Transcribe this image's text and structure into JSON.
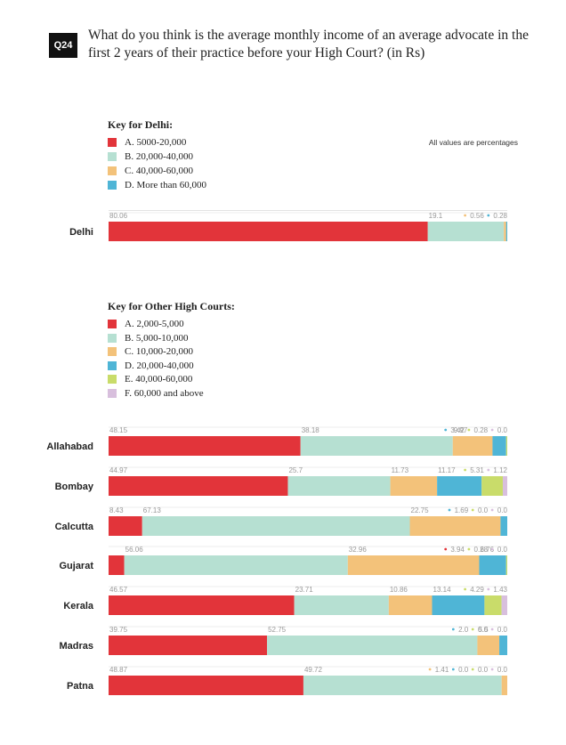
{
  "question": {
    "badge": "Q24",
    "text": "What do you think is the average monthly income of an average advocate in the first 2 years of their practice before your High Court? (in Rs)"
  },
  "note": "All values are percentages",
  "colors": {
    "red": "#e2343a",
    "mint": "#b6e0d2",
    "orange": "#f3c27a",
    "blue": "#4fb5d6",
    "green": "#c9dc6a",
    "lilac": "#d8bfdd"
  },
  "delhi_key": {
    "title": "Key for Delhi:",
    "items": [
      {
        "label": "A.  5000-20,000",
        "color": "#e2343a"
      },
      {
        "label": "B.  20,000-40,000",
        "color": "#b6e0d2"
      },
      {
        "label": "C.  40,000-60,000",
        "color": "#f3c27a"
      },
      {
        "label": "D.  More than 60,000",
        "color": "#4fb5d6"
      }
    ]
  },
  "other_key": {
    "title": "Key for Other High Courts:",
    "items": [
      {
        "label": "A.  2,000-5,000",
        "color": "#e2343a"
      },
      {
        "label": "B.  5,000-10,000",
        "color": "#b6e0d2"
      },
      {
        "label": "C.  10,000-20,000",
        "color": "#f3c27a"
      },
      {
        "label": "D.  20,000-40,000",
        "color": "#4fb5d6"
      },
      {
        "label": "E.  40,000-60,000",
        "color": "#c9dc6a"
      },
      {
        "label": "F.  60,000 and above",
        "color": "#d8bfdd"
      }
    ]
  },
  "chart_data": {
    "type": "bar",
    "orientation": "horizontal-stacked",
    "unit": "percent",
    "xlim": [
      0,
      100
    ],
    "categories": [
      "Delhi",
      "Allahabad",
      "Bombay",
      "Calcutta",
      "Gujarat",
      "Kerala",
      "Madras",
      "Patna"
    ],
    "series": [
      {
        "name": "A",
        "values": [
          80.06,
          48.15,
          44.97,
          8.43,
          3.94,
          46.57,
          39.75,
          48.87
        ],
        "labels": [
          "80.06",
          "48.15",
          "44.97",
          "8.43",
          "3.94",
          "46.57",
          "39.75",
          "48.87"
        ]
      },
      {
        "name": "B",
        "values": [
          19.1,
          38.18,
          25.7,
          67.13,
          56.06,
          23.71,
          52.75,
          49.72
        ],
        "labels": [
          "19.1",
          "38.18",
          "25.7",
          "67.13",
          "56.06",
          "23.71",
          "52.75",
          "49.72"
        ]
      },
      {
        "name": "C",
        "values": [
          0.56,
          9.97,
          11.73,
          22.75,
          32.96,
          10.86,
          5.5,
          1.41
        ],
        "labels": [
          "0.56",
          "9.97",
          "11.73",
          "22.75",
          "32.96",
          "10.86",
          "5.5",
          "1.41"
        ]
      },
      {
        "name": "D",
        "values": [
          0.28,
          3.42,
          11.17,
          1.69,
          6.76,
          13.14,
          2.0,
          0.0
        ],
        "labels": [
          "0.28",
          "3.42",
          "11.17",
          "1.69",
          "6.76",
          "13.14",
          "2.0",
          "0.0"
        ]
      },
      {
        "name": "E",
        "values": [
          null,
          0.28,
          5.31,
          0.0,
          0.28,
          4.29,
          0.0,
          0.0
        ],
        "labels": [
          null,
          "0.28",
          "5.31",
          "0.0",
          "0.28",
          "4.29",
          "0.0",
          "0.0"
        ]
      },
      {
        "name": "F",
        "values": [
          null,
          0.0,
          1.12,
          0.0,
          0.0,
          1.43,
          0.0,
          0.0
        ],
        "labels": [
          null,
          "0.0",
          "1.12",
          "0.0",
          "0.0",
          "1.43",
          "0.0",
          "0.0"
        ]
      }
    ],
    "grid": false,
    "legend": "above"
  }
}
